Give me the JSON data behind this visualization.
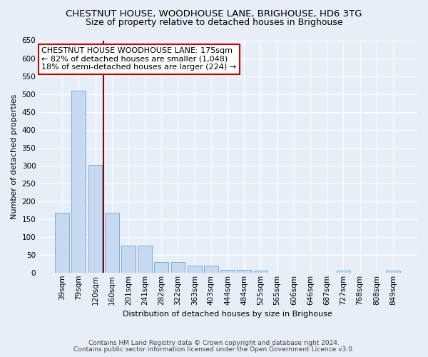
{
  "title": "CHESTNUT HOUSE, WOODHOUSE LANE, BRIGHOUSE, HD6 3TG",
  "subtitle": "Size of property relative to detached houses in Brighouse",
  "xlabel": "Distribution of detached houses by size in Brighouse",
  "ylabel": "Number of detached properties",
  "categories": [
    "39sqm",
    "79sqm",
    "120sqm",
    "160sqm",
    "201sqm",
    "241sqm",
    "282sqm",
    "322sqm",
    "363sqm",
    "403sqm",
    "444sqm",
    "484sqm",
    "525sqm",
    "565sqm",
    "606sqm",
    "646sqm",
    "687sqm",
    "727sqm",
    "768sqm",
    "808sqm",
    "849sqm"
  ],
  "values": [
    168,
    510,
    302,
    168,
    75,
    75,
    30,
    30,
    20,
    20,
    8,
    8,
    5,
    0,
    0,
    0,
    0,
    5,
    0,
    0,
    5
  ],
  "bar_color": "#c6d9f0",
  "bar_edge_color": "#7bafd4",
  "vline_x": 2.5,
  "vline_color": "#8b0000",
  "ylim": [
    0,
    650
  ],
  "yticks": [
    0,
    50,
    100,
    150,
    200,
    250,
    300,
    350,
    400,
    450,
    500,
    550,
    600,
    650
  ],
  "annotation_text": "CHESTNUT HOUSE WOODHOUSE LANE: 175sqm\n← 82% of detached houses are smaller (1,048)\n18% of semi-detached houses are larger (224) →",
  "annotation_box_color": "#ffffff",
  "annotation_box_edge": "#cc0000",
  "footer_line1": "Contains HM Land Registry data © Crown copyright and database right 2024.",
  "footer_line2": "Contains public sector information licensed under the Open Government Licence v3.0.",
  "background_color": "#e8eef7",
  "grid_color": "#d0d8e8",
  "title_fontsize": 9.5,
  "subtitle_fontsize": 9,
  "tick_fontsize": 7.5,
  "ylabel_fontsize": 8,
  "annotation_fontsize": 8
}
